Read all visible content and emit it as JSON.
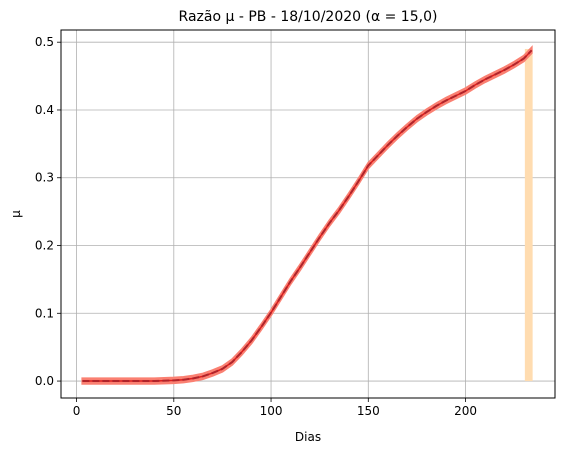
{
  "chart_data": {
    "type": "line",
    "title": "Razão μ - PB - 18/10/2020 (α = 15,0)",
    "xlabel": "Dias",
    "ylabel": "μ",
    "xlim": [
      -8,
      246
    ],
    "ylim": [
      -0.025,
      0.518
    ],
    "xticks": [
      0,
      50,
      100,
      150,
      200
    ],
    "xtick_labels": [
      "0",
      "50",
      "100",
      "150",
      "200"
    ],
    "yticks": [
      0.0,
      0.1,
      0.2,
      0.3,
      0.4,
      0.5
    ],
    "ytick_labels": [
      "0.0",
      "0.1",
      "0.2",
      "0.3",
      "0.4",
      "0.5"
    ],
    "grid": true,
    "colors": {
      "band": "#fa8072",
      "line": "#dd1c1c",
      "dashed": "#b0232a",
      "highlight": "#ffdcb0",
      "grid": "#b0b0b0"
    },
    "series": [
      {
        "style": "band-and-dashed-line",
        "x": [
          3,
          20,
          40,
          50,
          55,
          60,
          65,
          70,
          75,
          80,
          85,
          90,
          95,
          100,
          105,
          110,
          115,
          120,
          125,
          130,
          135,
          140,
          145,
          150,
          155,
          160,
          165,
          170,
          175,
          180,
          185,
          190,
          195,
          200,
          205,
          210,
          215,
          220,
          225,
          230,
          234
        ],
        "y": [
          0.0,
          0.0,
          0.0,
          0.001,
          0.002,
          0.004,
          0.007,
          0.012,
          0.018,
          0.028,
          0.043,
          0.06,
          0.08,
          0.101,
          0.124,
          0.147,
          0.168,
          0.19,
          0.212,
          0.233,
          0.252,
          0.273,
          0.295,
          0.318,
          0.333,
          0.348,
          0.362,
          0.375,
          0.387,
          0.397,
          0.406,
          0.414,
          0.421,
          0.428,
          0.437,
          0.445,
          0.452,
          0.459,
          0.467,
          0.476,
          0.488
        ],
        "band_halfwidth": 0.004
      }
    ],
    "highlight_span": {
      "x": [
        230.5,
        234.5
      ],
      "y": [
        0.0,
        0.49
      ]
    }
  }
}
